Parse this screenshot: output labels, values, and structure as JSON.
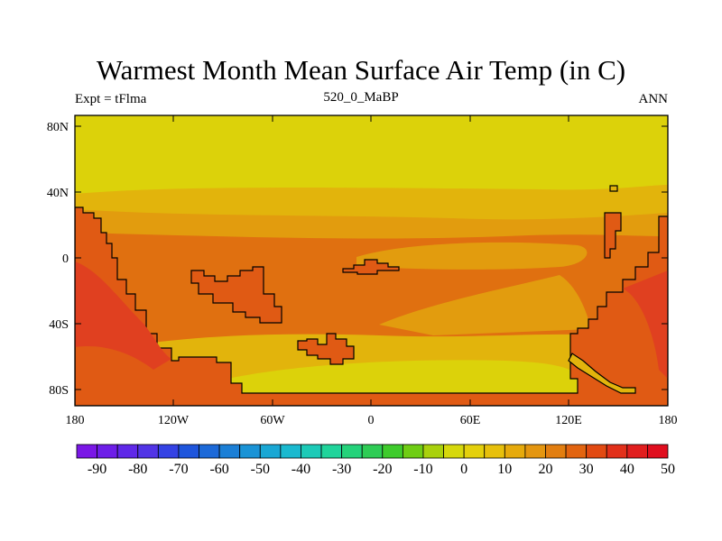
{
  "title": "Warmest Month Mean Surface Air Temp (in C)",
  "subtitle_left": "Expt = tFlma",
  "subtitle_center": "520_0_MaBP",
  "subtitle_right": "ANN",
  "map": {
    "lat_labels": [
      "80N",
      "40N",
      "0",
      "40S",
      "80S"
    ],
    "lon_labels": [
      "180",
      "120W",
      "60W",
      "0",
      "60E",
      "120E",
      "180"
    ]
  },
  "colorbar": {
    "colors": [
      "#7a17e6",
      "#6d1ee8",
      "#5f28e8",
      "#5134e6",
      "#3442e4",
      "#1e55dc",
      "#1c69d8",
      "#1b7fd6",
      "#1a93d6",
      "#19a7d4",
      "#1ab9cf",
      "#1ccab7",
      "#20d49b",
      "#24d27a",
      "#2ecc55",
      "#3ecb2c",
      "#6fcd14",
      "#a9d10c",
      "#d6d80c",
      "#e4d00c",
      "#e7c00c",
      "#e6aa0c",
      "#e49610",
      "#e27e10",
      "#e26410",
      "#e24a12",
      "#e2301a",
      "#e11e1e",
      "#e00e1e"
    ],
    "tick_labels": [
      "-90",
      "-80",
      "-70",
      "-60",
      "-50",
      "-40",
      "-30",
      "-20",
      "-10",
      "0",
      "10",
      "20",
      "30",
      "40",
      "50"
    ]
  },
  "fill_colors": {
    "band_high": "#dcd20a",
    "band_mid": "#e2b40c",
    "band_warm": "#e29c0e",
    "band_hot": "#e07010",
    "land": "#e05a14",
    "land_hot": "#e04020",
    "coast": "#000000"
  }
}
